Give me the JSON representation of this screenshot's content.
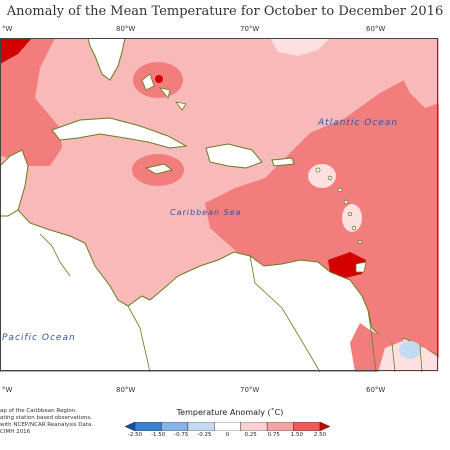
{
  "title": "Anomaly of the Mean Temperature for October to December 2016",
  "top_ticks": [
    "°W",
    "80°W",
    "70°W",
    "60°W"
  ],
  "bottom_ticks": [
    "°W",
    "80°W",
    "70°W",
    "60°W"
  ],
  "places": {
    "atlantic": "Atlantic Ocean",
    "caribbean": "Caribbean Sea",
    "pacific": "Pacific Ocean"
  },
  "credit": [
    "ap of the Caribbean Region.",
    "ating station based observations,",
    "with NCEP/NCAR Reanalysis Data.",
    "CIMH 2016"
  ],
  "legend": {
    "title": "Temperature Anomaly (˚C)",
    "labels": [
      "-2.50",
      "-1.50",
      "-0.75",
      "-0.25",
      "0",
      "0.25",
      "0.75",
      "1.50",
      "2.50"
    ],
    "colors": [
      "#0b4fa8",
      "#3b7fd0",
      "#86b3e8",
      "#c4d9f4",
      "#ffffff",
      "#fbd0d0",
      "#f6a3a3",
      "#ee5b5b",
      "#cc0000"
    ]
  },
  "colors": {
    "land": "#ffffff",
    "coast": "#6b7a1f",
    "anom_025_075": "#f8b9b9",
    "anom_075_150": "#f27d7d",
    "anom_0_025": "#fde0e0",
    "anom_150_250": "#d40000",
    "anom_neg": "#c4d9f4"
  }
}
